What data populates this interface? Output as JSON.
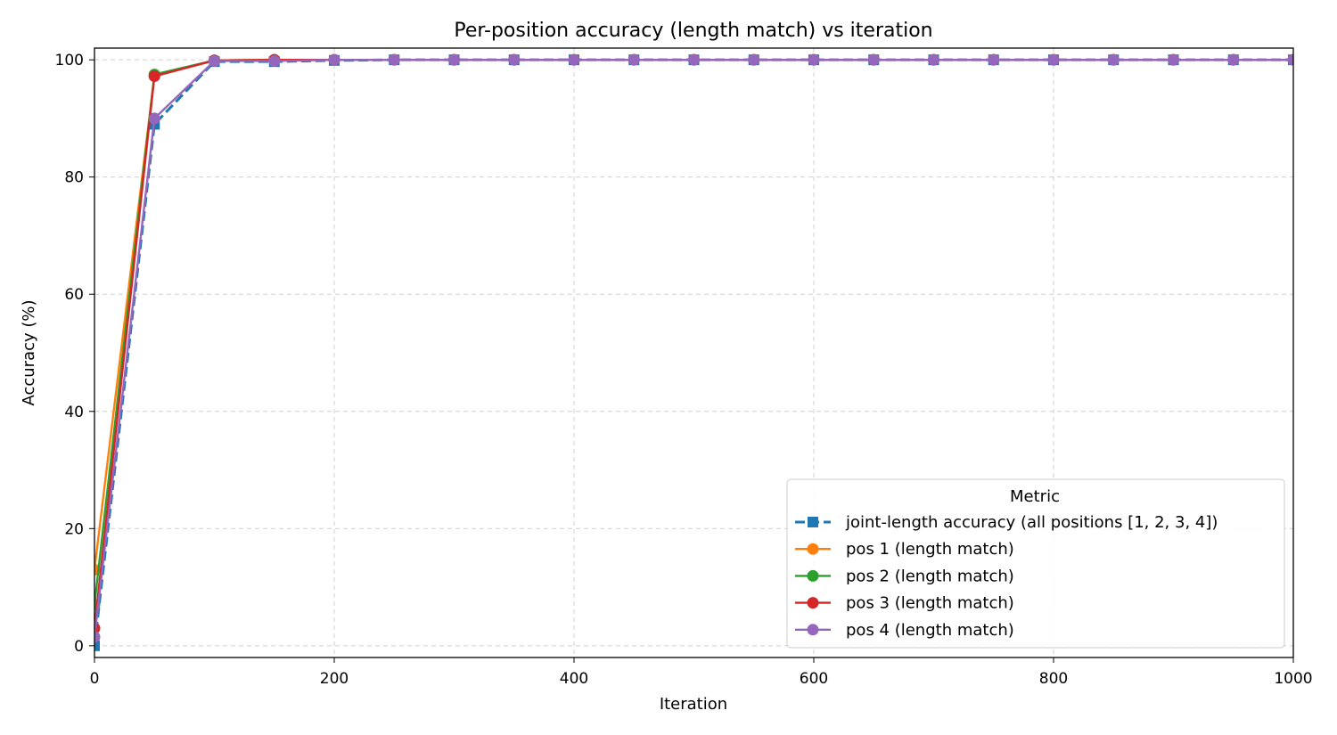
{
  "chart_data": {
    "type": "line",
    "title": "Per-position accuracy (length match) vs iteration",
    "xlabel": "Iteration",
    "ylabel": "Accuracy (%)",
    "xlim": [
      0,
      1000
    ],
    "ylim": [
      -2,
      102
    ],
    "xticks": [
      0,
      200,
      400,
      600,
      800,
      1000
    ],
    "yticks": [
      0,
      20,
      40,
      60,
      80,
      100
    ],
    "grid": true,
    "legend_title": "Metric",
    "legend_position": "lower right",
    "x": [
      0,
      50,
      100,
      150,
      200,
      250,
      300,
      350,
      400,
      450,
      500,
      550,
      600,
      650,
      700,
      750,
      800,
      850,
      900,
      950,
      1000
    ],
    "series": [
      {
        "name": "joint-length accuracy (all positions [1, 2, 3, 4])",
        "color": "#1f77b4",
        "marker": "square",
        "linestyle": "dashed",
        "values": [
          0,
          89,
          99.7,
          99.7,
          99.9,
          100,
          100,
          100,
          100,
          100,
          100,
          100,
          100,
          100,
          100,
          100,
          100,
          100,
          100,
          100,
          100
        ]
      },
      {
        "name": "pos 1 (length match)",
        "color": "#ff7f0e",
        "marker": "circle",
        "linestyle": "solid",
        "values": [
          13,
          97.3,
          99.9,
          100,
          100,
          100,
          100,
          100,
          100,
          100,
          100,
          100,
          100,
          100,
          100,
          100,
          100,
          100,
          100,
          100,
          100
        ]
      },
      {
        "name": "pos 2 (length match)",
        "color": "#2ca02c",
        "marker": "circle",
        "linestyle": "solid",
        "values": [
          7,
          97.5,
          99.9,
          100,
          100,
          100,
          100,
          100,
          100,
          100,
          100,
          100,
          100,
          100,
          100,
          100,
          100,
          100,
          100,
          100,
          100
        ]
      },
      {
        "name": "pos 3 (length match)",
        "color": "#d62728",
        "marker": "circle",
        "linestyle": "solid",
        "values": [
          3,
          97.2,
          99.9,
          100,
          100,
          100,
          100,
          100,
          100,
          100,
          100,
          100,
          100,
          100,
          100,
          100,
          100,
          100,
          100,
          100,
          100
        ]
      },
      {
        "name": "pos 4 (length match)",
        "color": "#9467bd",
        "marker": "circle",
        "linestyle": "solid",
        "values": [
          1.5,
          90,
          99.8,
          99.8,
          100,
          100,
          100,
          100,
          100,
          100,
          100,
          100,
          100,
          100,
          100,
          100,
          100,
          100,
          100,
          100,
          100
        ]
      }
    ]
  }
}
